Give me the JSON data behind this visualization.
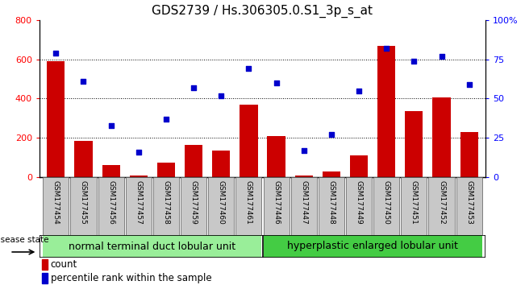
{
  "title": "GDS2739 / Hs.306305.0.S1_3p_s_at",
  "samples": [
    "GSM177454",
    "GSM177455",
    "GSM177456",
    "GSM177457",
    "GSM177458",
    "GSM177459",
    "GSM177460",
    "GSM177461",
    "GSM177446",
    "GSM177447",
    "GSM177448",
    "GSM177449",
    "GSM177450",
    "GSM177451",
    "GSM177452",
    "GSM177453"
  ],
  "counts": [
    590,
    185,
    60,
    10,
    75,
    165,
    135,
    370,
    210,
    10,
    30,
    110,
    670,
    335,
    405,
    230
  ],
  "percentiles": [
    79,
    61,
    33,
    16,
    37,
    57,
    52,
    69,
    60,
    17,
    27,
    55,
    82,
    74,
    77,
    59
  ],
  "group1_label": "normal terminal duct lobular unit",
  "group2_label": "hyperplastic enlarged lobular unit",
  "ylim_left": [
    0,
    800
  ],
  "ylim_right": [
    0,
    100
  ],
  "yticks_left": [
    0,
    200,
    400,
    600,
    800
  ],
  "yticks_right": [
    0,
    25,
    50,
    75,
    100
  ],
  "yticklabels_right": [
    "0",
    "25",
    "50",
    "75",
    "100%"
  ],
  "bar_color": "#cc0000",
  "dot_color": "#0000cc",
  "tick_label_bg": "#c8c8c8",
  "group1_bg": "#99ee99",
  "group2_bg": "#44cc44",
  "disease_state_label": "disease state",
  "legend_count_label": "count",
  "legend_percentile_label": "percentile rank within the sample",
  "title_fontsize": 11,
  "tick_fontsize": 8,
  "legend_fontsize": 8.5,
  "group_fontsize": 9,
  "sample_fontsize": 6.5
}
